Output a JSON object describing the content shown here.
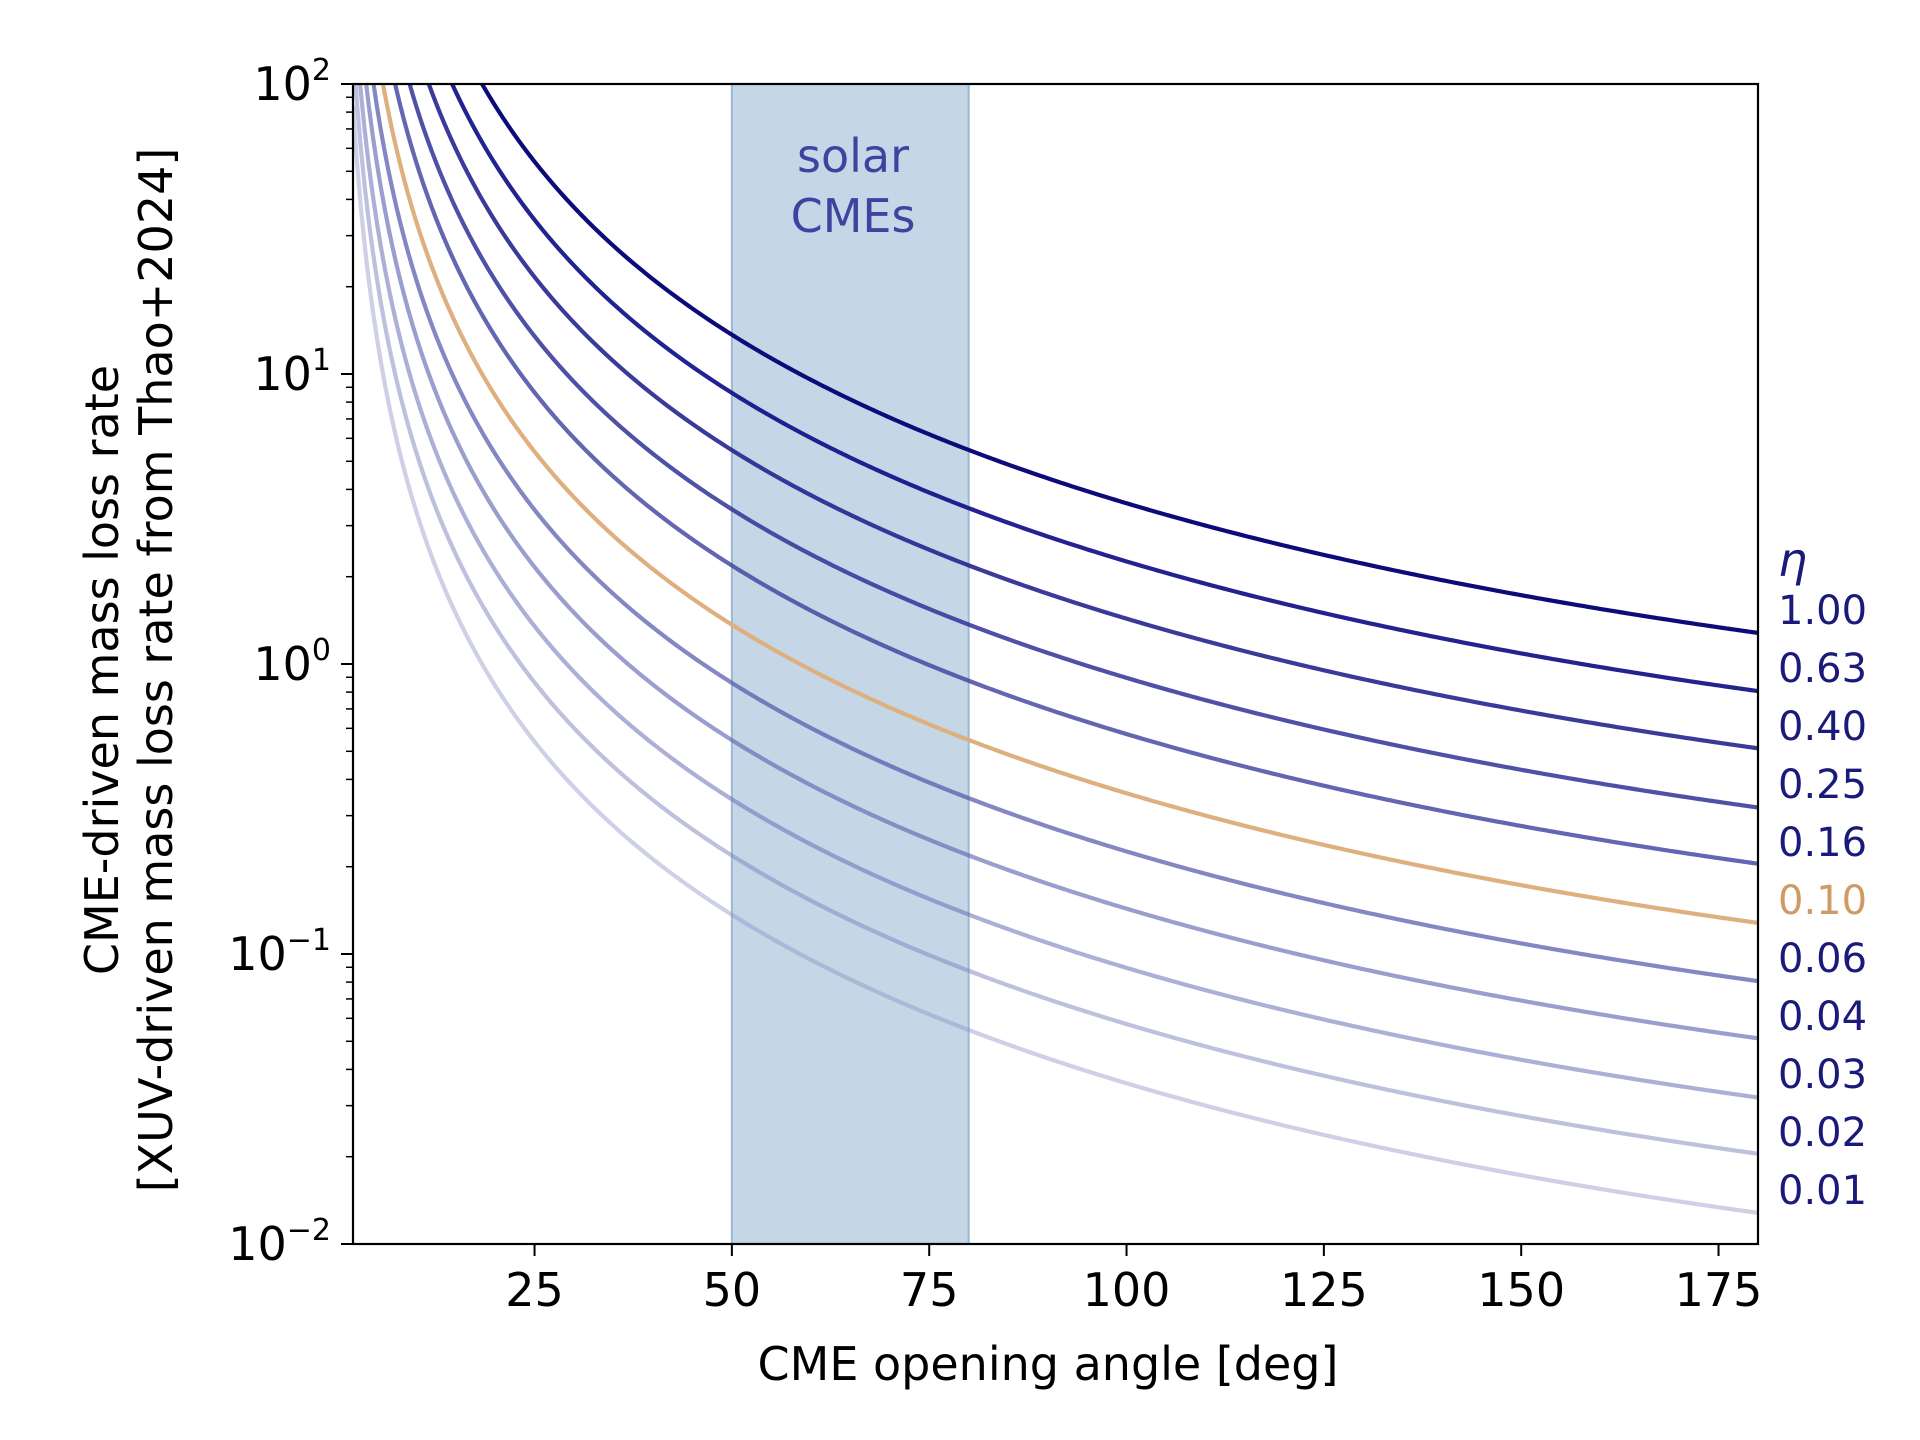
{
  "chart_data": {
    "type": "line",
    "xlabel": "CME opening angle [deg]",
    "ylabel_line1": "CME-driven mass loss rate",
    "ylabel_line2": "[XUV-driven mass loss rate from Thao+2024]",
    "xlim": [
      2,
      180
    ],
    "ylim": [
      0.01,
      100
    ],
    "yscale": "log",
    "x_ticks": [
      25,
      50,
      75,
      100,
      125,
      150,
      175
    ],
    "x_tick_labels": [
      "25",
      "50",
      "75",
      "100",
      "125",
      "150",
      "175"
    ],
    "y_ticks": [
      {
        "base": "10",
        "exp": "2",
        "value": 100
      },
      {
        "base": "10",
        "exp": "1",
        "value": 10
      },
      {
        "base": "10",
        "exp": "0",
        "value": 1
      },
      {
        "base": "10",
        "exp": "−1",
        "value": 0.1
      },
      {
        "base": "10",
        "exp": "−2",
        "value": 0.01
      }
    ],
    "shaded_band": {
      "x0": 50,
      "x1": 80,
      "label_line1": "solar",
      "label_line2": "CMEs",
      "color": "#c5d6e6",
      "edge": "#9db9d3",
      "text_color": "#3a45a0"
    },
    "legend_title": "η",
    "legend_title_color": "#1a1a7a",
    "model": "y = C · η / (1 − cos(θ/2)); y(180°) = 1.28 at η = 1.00",
    "C": 1.28,
    "series": [
      {
        "name": "1.00",
        "eta": 1.0,
        "color": "#0b0b7a",
        "opacity": 1.0
      },
      {
        "name": "0.63",
        "eta": 0.63,
        "color": "#16168a",
        "opacity": 0.95
      },
      {
        "name": "0.40",
        "eta": 0.4,
        "color": "#23258f",
        "opacity": 0.9
      },
      {
        "name": "0.25",
        "eta": 0.25,
        "color": "#2f3296",
        "opacity": 0.85
      },
      {
        "name": "0.16",
        "eta": 0.16,
        "color": "#3c409c",
        "opacity": 0.8
      },
      {
        "name": "0.10",
        "eta": 0.1,
        "color": "#deb080",
        "opacity": 1.0,
        "label_color": "#cf9a63"
      },
      {
        "name": "0.06",
        "eta": 0.063,
        "color": "#5056a8",
        "opacity": 0.7
      },
      {
        "name": "0.04",
        "eta": 0.04,
        "color": "#5c63ae",
        "opacity": 0.62
      },
      {
        "name": "0.03",
        "eta": 0.025,
        "color": "#6a70b4",
        "opacity": 0.55
      },
      {
        "name": "0.02",
        "eta": 0.016,
        "color": "#787dba",
        "opacity": 0.48
      },
      {
        "name": "0.01",
        "eta": 0.01,
        "color": "#8a8fc4",
        "opacity": 0.42
      }
    ],
    "series_label_color": "#1a1a7a"
  }
}
